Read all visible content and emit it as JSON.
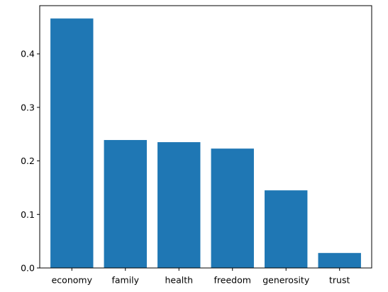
{
  "chart_data": {
    "type": "bar",
    "title": "",
    "xlabel": "",
    "ylabel": "",
    "categories": [
      "economy",
      "family",
      "health",
      "freedom",
      "generosity",
      "trust"
    ],
    "values": [
      0.466,
      0.239,
      0.235,
      0.223,
      0.145,
      0.028
    ],
    "ylim": [
      0,
      0.49
    ],
    "yticks": [
      0.0,
      0.1,
      0.2,
      0.3,
      0.4
    ],
    "ytick_labels": [
      "0.0",
      "0.1",
      "0.2",
      "0.3",
      "0.4"
    ],
    "bar_color": "#1f77b4",
    "grid": false,
    "legend": "none"
  }
}
